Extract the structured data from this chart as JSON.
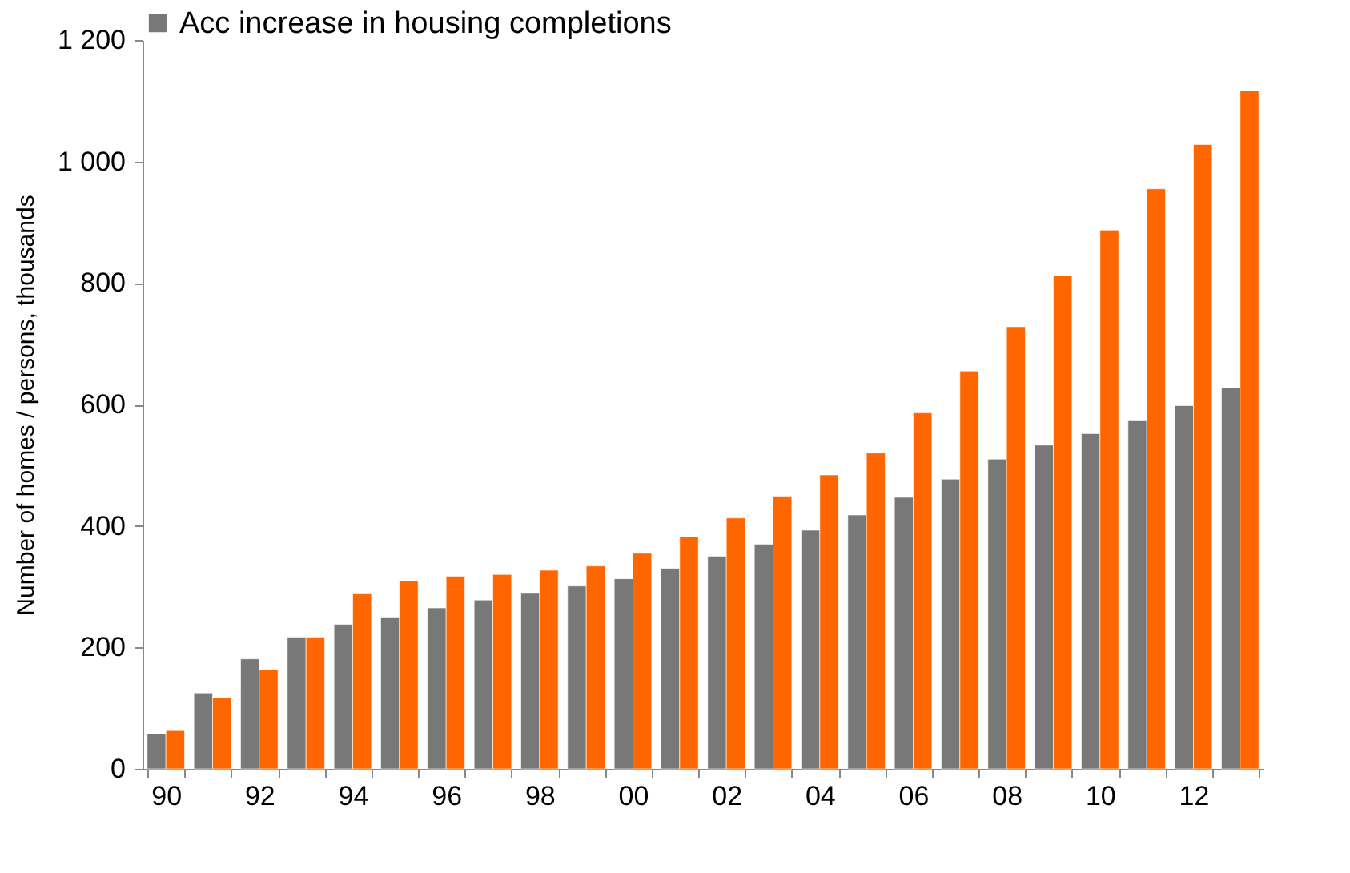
{
  "chart_data": {
    "type": "bar",
    "ylabel": "Number of homes / persons, thousands",
    "categories": [
      "90",
      null,
      "92",
      null,
      "94",
      null,
      "96",
      null,
      "98",
      null,
      "00",
      null,
      "02",
      null,
      "04",
      null,
      "06",
      null,
      "08",
      null,
      "10",
      null,
      "12",
      null
    ],
    "series": [
      {
        "name": "Acc increase in housing completions",
        "color": "#787878",
        "values": [
          58,
          125,
          181,
          217,
          238,
          250,
          265,
          278,
          289,
          301,
          313,
          330,
          350,
          370,
          393,
          418,
          447,
          477,
          510,
          533,
          552,
          573,
          598,
          627
        ]
      },
      {
        "color": "#ff6600",
        "values": [
          63,
          117,
          163,
          217,
          288,
          310,
          317,
          320,
          327,
          334,
          355,
          382,
          413,
          449,
          484,
          520,
          586,
          655,
          728,
          812,
          887,
          955,
          1028,
          1117
        ]
      }
    ],
    "ylim": [
      0,
      1200
    ],
    "yticks": [
      0,
      200,
      400,
      600,
      800,
      {
        "value": 1000,
        "label": "1 000"
      },
      {
        "value": 1200,
        "label": "1 200"
      }
    ],
    "grid": false,
    "legend": "top"
  }
}
